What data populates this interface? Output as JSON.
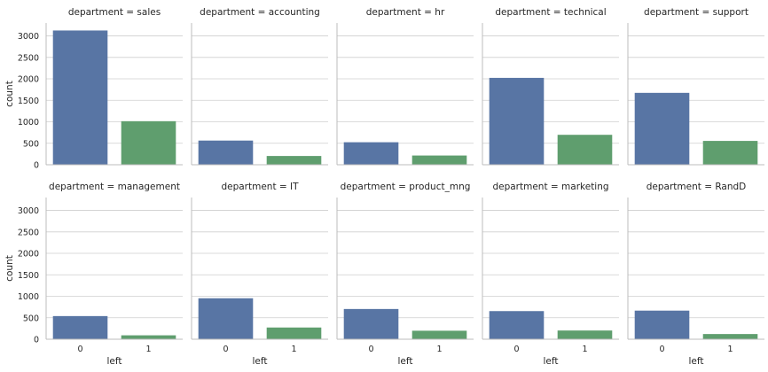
{
  "chart_data": {
    "type": "bar",
    "facet_variable": "department",
    "xlabel": "left",
    "ylabel": "count",
    "categories": [
      "0",
      "1"
    ],
    "ylim": [
      0,
      3300
    ],
    "yticks": [
      0,
      500,
      1000,
      1500,
      2000,
      2500,
      3000
    ],
    "grid": "horizontal",
    "colors": [
      "#5875a4",
      "#5f9e6e"
    ],
    "facets": [
      {
        "title": "department = sales",
        "department": "sales",
        "values": [
          3126,
          1014
        ]
      },
      {
        "title": "department = accounting",
        "department": "accounting",
        "values": [
          563,
          204
        ]
      },
      {
        "title": "department = hr",
        "department": "hr",
        "values": [
          524,
          215
        ]
      },
      {
        "title": "department = technical",
        "department": "technical",
        "values": [
          2023,
          697
        ]
      },
      {
        "title": "department = support",
        "department": "support",
        "values": [
          1674,
          555
        ]
      },
      {
        "title": "department = management",
        "department": "management",
        "values": [
          539,
          91
        ]
      },
      {
        "title": "department = IT",
        "department": "IT",
        "values": [
          954,
          273
        ]
      },
      {
        "title": "department = product_mng",
        "department": "product_mng",
        "values": [
          704,
          198
        ]
      },
      {
        "title": "department = marketing",
        "department": "marketing",
        "values": [
          655,
          203
        ]
      },
      {
        "title": "department = RandD",
        "department": "RandD",
        "values": [
          666,
          121
        ]
      }
    ]
  }
}
